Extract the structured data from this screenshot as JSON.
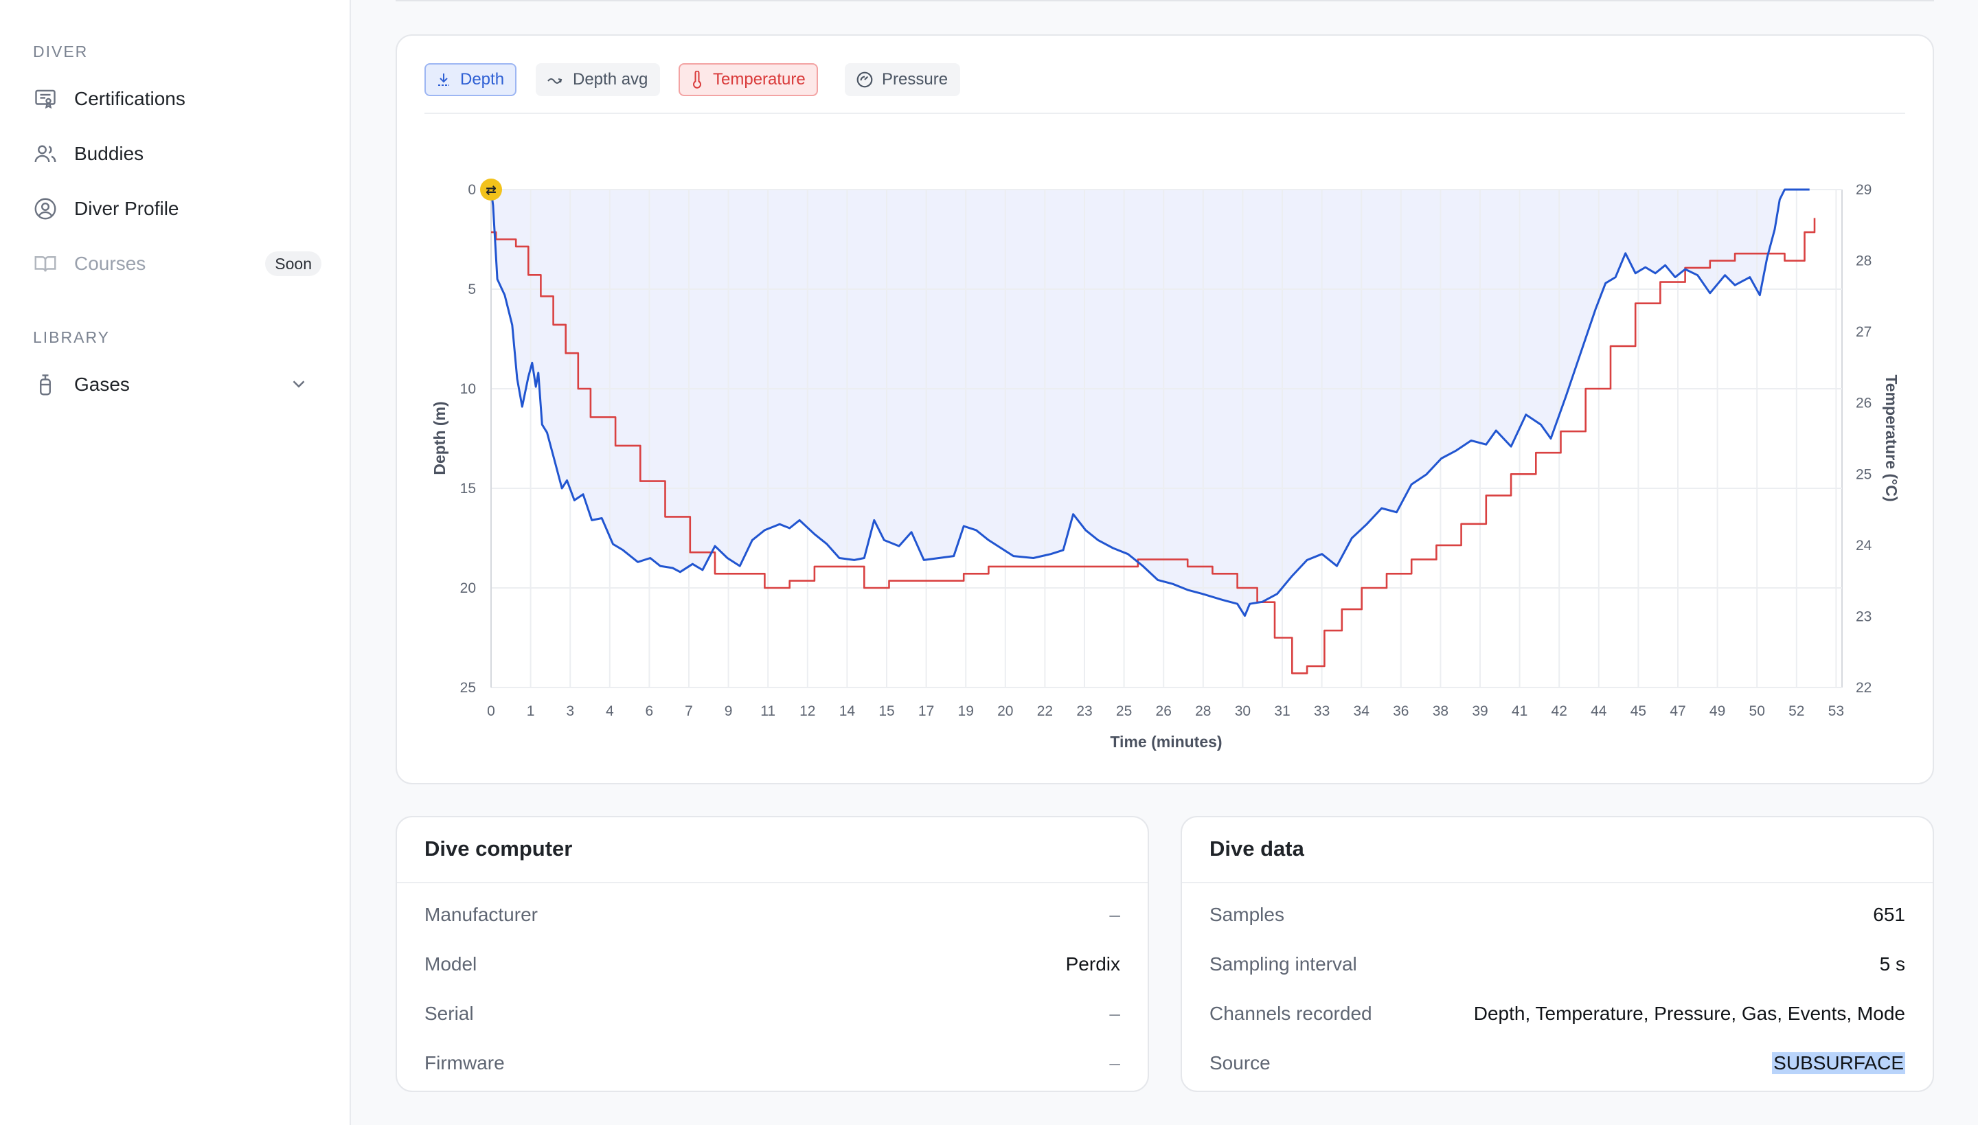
{
  "sidebar": {
    "diver_section": "DIVER",
    "library_section": "LIBRARY",
    "items": [
      {
        "label": "Certifications",
        "icon": "certificate-icon"
      },
      {
        "label": "Buddies",
        "icon": "users-icon"
      },
      {
        "label": "Diver Profile",
        "icon": "user-circle-icon"
      },
      {
        "label": "Courses",
        "icon": "book-icon",
        "badge": "Soon",
        "disabled": true
      }
    ],
    "library_items": [
      {
        "label": "Gases",
        "icon": "tank-icon",
        "expand_icon": "chevron-down-icon"
      }
    ]
  },
  "chart_toggles": [
    {
      "label": "Depth",
      "icon": "download-depth-icon",
      "active": true,
      "color": "#2d5fd4"
    },
    {
      "label": "Depth avg",
      "icon": "trend-icon",
      "active": false
    },
    {
      "label": "Temperature",
      "icon": "thermometer-icon",
      "active": true,
      "color": "#d93a3a"
    },
    {
      "label": "Pressure",
      "icon": "gauge-icon",
      "active": false
    }
  ],
  "chart_data": {
    "type": "line",
    "xlabel": "Time (minutes)",
    "ylabel": "Depth (m)",
    "y2label": "Temperature (°C)",
    "x_ticks": [
      "0",
      "1",
      "3",
      "4",
      "6",
      "7",
      "9",
      "11",
      "12",
      "14",
      "15",
      "17",
      "19",
      "20",
      "22",
      "23",
      "25",
      "26",
      "28",
      "30",
      "31",
      "33",
      "34",
      "36",
      "38",
      "39",
      "41",
      "42",
      "44",
      "45",
      "47",
      "49",
      "50",
      "52",
      "53"
    ],
    "xlim": [
      0,
      54.25
    ],
    "ylim": [
      0,
      25
    ],
    "y_ticks": [
      0,
      5,
      10,
      15,
      20,
      25
    ],
    "y2lim": [
      22,
      29
    ],
    "y2_ticks": [
      29,
      28,
      27,
      26,
      25,
      24,
      23,
      22
    ],
    "y_inverted": true,
    "grid": true,
    "marker_label": "⇄",
    "series": [
      {
        "axis": "depth",
        "color": "#2155d0",
        "fill": "#eef1fd",
        "points": [
          [
            0,
            0
          ],
          [
            0.08,
            0.8
          ],
          [
            0.25,
            4.5
          ],
          [
            0.55,
            5.3
          ],
          [
            0.85,
            6.8
          ],
          [
            1.05,
            9.5
          ],
          [
            1.25,
            10.9
          ],
          [
            1.5,
            9.4
          ],
          [
            1.65,
            8.7
          ],
          [
            1.8,
            9.9
          ],
          [
            1.9,
            9.2
          ],
          [
            2.05,
            11.8
          ],
          [
            2.25,
            12.2
          ],
          [
            2.55,
            13.6
          ],
          [
            2.85,
            15.0
          ],
          [
            3.05,
            14.6
          ],
          [
            3.35,
            15.6
          ],
          [
            3.7,
            15.3
          ],
          [
            4.05,
            16.6
          ],
          [
            4.45,
            16.5
          ],
          [
            4.9,
            17.8
          ],
          [
            5.3,
            18.1
          ],
          [
            5.9,
            18.7
          ],
          [
            6.4,
            18.5
          ],
          [
            6.8,
            18.9
          ],
          [
            7.3,
            19.0
          ],
          [
            7.6,
            19.2
          ],
          [
            8.1,
            18.8
          ],
          [
            8.5,
            19.1
          ],
          [
            9.0,
            17.9
          ],
          [
            9.5,
            18.5
          ],
          [
            10.0,
            18.9
          ],
          [
            10.5,
            17.6
          ],
          [
            11.0,
            17.1
          ],
          [
            11.6,
            16.8
          ],
          [
            12.0,
            17.0
          ],
          [
            12.4,
            16.6
          ],
          [
            13.0,
            17.3
          ],
          [
            13.5,
            17.8
          ],
          [
            14.0,
            18.5
          ],
          [
            14.6,
            18.6
          ],
          [
            15.0,
            18.5
          ],
          [
            15.4,
            16.6
          ],
          [
            15.8,
            17.6
          ],
          [
            16.4,
            17.9
          ],
          [
            16.9,
            17.2
          ],
          [
            17.4,
            18.6
          ],
          [
            18.0,
            18.5
          ],
          [
            18.6,
            18.4
          ],
          [
            19.0,
            16.9
          ],
          [
            19.5,
            17.1
          ],
          [
            20.0,
            17.6
          ],
          [
            20.5,
            18.0
          ],
          [
            21.0,
            18.4
          ],
          [
            21.8,
            18.5
          ],
          [
            22.5,
            18.3
          ],
          [
            23.0,
            18.1
          ],
          [
            23.4,
            16.3
          ],
          [
            23.9,
            17.1
          ],
          [
            24.4,
            17.6
          ],
          [
            25.0,
            18.0
          ],
          [
            25.6,
            18.3
          ],
          [
            26.2,
            18.9
          ],
          [
            26.8,
            19.6
          ],
          [
            27.4,
            19.8
          ],
          [
            28.0,
            20.1
          ],
          [
            28.6,
            20.3
          ],
          [
            29.4,
            20.6
          ],
          [
            30.0,
            20.8
          ],
          [
            30.3,
            21.4
          ],
          [
            30.5,
            20.8
          ],
          [
            31.0,
            20.7
          ],
          [
            31.6,
            20.3
          ],
          [
            32.2,
            19.4
          ],
          [
            32.8,
            18.6
          ],
          [
            33.4,
            18.3
          ],
          [
            34.0,
            18.9
          ],
          [
            34.6,
            17.5
          ],
          [
            35.2,
            16.8
          ],
          [
            35.8,
            16.0
          ],
          [
            36.4,
            16.2
          ],
          [
            37.0,
            14.8
          ],
          [
            37.6,
            14.3
          ],
          [
            38.2,
            13.5
          ],
          [
            38.8,
            13.1
          ],
          [
            39.4,
            12.6
          ],
          [
            40.0,
            12.8
          ],
          [
            40.4,
            12.1
          ],
          [
            41.0,
            12.9
          ],
          [
            41.6,
            11.3
          ],
          [
            42.2,
            11.8
          ],
          [
            42.6,
            12.5
          ],
          [
            43.2,
            10.4
          ],
          [
            43.8,
            8.2
          ],
          [
            44.4,
            6.0
          ],
          [
            44.8,
            4.7
          ],
          [
            45.2,
            4.4
          ],
          [
            45.6,
            3.2
          ],
          [
            46.0,
            4.2
          ],
          [
            46.4,
            3.9
          ],
          [
            46.8,
            4.2
          ],
          [
            47.2,
            3.8
          ],
          [
            47.6,
            4.4
          ],
          [
            48.0,
            4.0
          ],
          [
            48.5,
            4.3
          ],
          [
            49.0,
            5.2
          ],
          [
            49.6,
            4.3
          ],
          [
            50.0,
            4.8
          ],
          [
            50.6,
            4.4
          ],
          [
            51.0,
            5.3
          ],
          [
            51.3,
            3.4
          ],
          [
            51.6,
            2.0
          ],
          [
            51.8,
            0.5
          ],
          [
            52.0,
            0.0
          ],
          [
            53.0,
            0.0
          ]
        ]
      },
      {
        "axis": "temperature",
        "color": "#d94141",
        "points": [
          [
            0,
            28.4
          ],
          [
            0.2,
            28.3
          ],
          [
            1.0,
            28.2
          ],
          [
            1.5,
            27.8
          ],
          [
            2.0,
            27.5
          ],
          [
            2.5,
            27.1
          ],
          [
            3.0,
            26.7
          ],
          [
            3.5,
            26.2
          ],
          [
            4.0,
            25.8
          ],
          [
            5.0,
            25.4
          ],
          [
            6.0,
            24.9
          ],
          [
            7.0,
            24.4
          ],
          [
            8.0,
            23.9
          ],
          [
            9.0,
            23.6
          ],
          [
            10.0,
            23.6
          ],
          [
            11.0,
            23.4
          ],
          [
            12.0,
            23.5
          ],
          [
            13.0,
            23.7
          ],
          [
            14.0,
            23.7
          ],
          [
            15.0,
            23.4
          ],
          [
            16.0,
            23.5
          ],
          [
            17.0,
            23.5
          ],
          [
            18.0,
            23.5
          ],
          [
            19.0,
            23.6
          ],
          [
            20.0,
            23.7
          ],
          [
            21.0,
            23.7
          ],
          [
            22.0,
            23.7
          ],
          [
            23.0,
            23.7
          ],
          [
            24.0,
            23.7
          ],
          [
            25.0,
            23.7
          ],
          [
            26.0,
            23.8
          ],
          [
            27.0,
            23.8
          ],
          [
            28.0,
            23.7
          ],
          [
            29.0,
            23.6
          ],
          [
            30.0,
            23.4
          ],
          [
            30.8,
            23.2
          ],
          [
            31.5,
            22.7
          ],
          [
            32.2,
            22.2
          ],
          [
            32.8,
            22.3
          ],
          [
            33.5,
            22.8
          ],
          [
            34.2,
            23.1
          ],
          [
            35.0,
            23.4
          ],
          [
            36.0,
            23.6
          ],
          [
            37.0,
            23.8
          ],
          [
            38.0,
            24.0
          ],
          [
            39.0,
            24.3
          ],
          [
            40.0,
            24.7
          ],
          [
            41.0,
            25.0
          ],
          [
            42.0,
            25.3
          ],
          [
            43.0,
            25.6
          ],
          [
            44.0,
            26.2
          ],
          [
            45.0,
            26.8
          ],
          [
            46.0,
            27.4
          ],
          [
            47.0,
            27.7
          ],
          [
            48.0,
            27.9
          ],
          [
            49.0,
            28.0
          ],
          [
            50.0,
            28.1
          ],
          [
            51.0,
            28.1
          ],
          [
            52.0,
            28.0
          ],
          [
            52.8,
            28.4
          ],
          [
            53.2,
            28.6
          ]
        ]
      }
    ]
  },
  "dive_computer": {
    "title": "Dive computer",
    "rows": [
      {
        "key": "Manufacturer",
        "value": "–"
      },
      {
        "key": "Model",
        "value": "Perdix"
      },
      {
        "key": "Serial",
        "value": "–"
      },
      {
        "key": "Firmware",
        "value": "–"
      }
    ]
  },
  "dive_data": {
    "title": "Dive data",
    "rows": [
      {
        "key": "Samples",
        "value": "651"
      },
      {
        "key": "Sampling interval",
        "value": "5 s"
      },
      {
        "key": "Channels recorded",
        "value": "Depth, Temperature, Pressure, Gas, Events, Mode"
      },
      {
        "key": "Source",
        "value": "SUBSURFACE"
      }
    ]
  }
}
